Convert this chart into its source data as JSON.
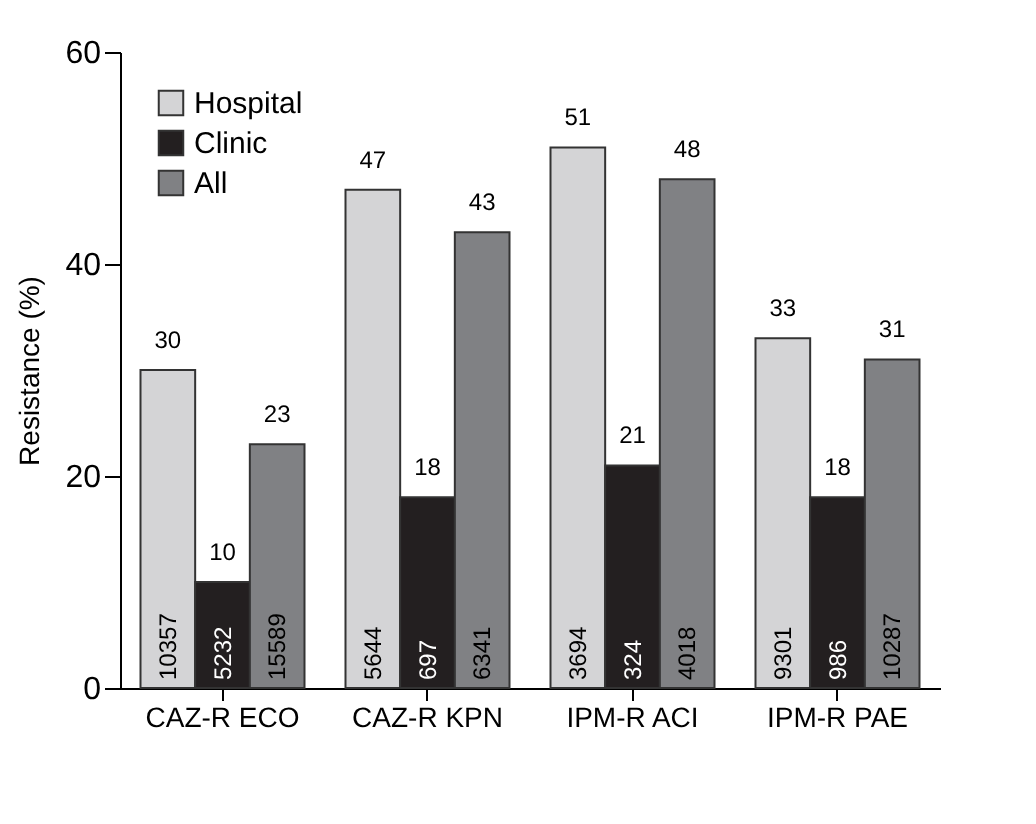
{
  "chart_data": {
    "type": "bar",
    "ylabel": "Resistance (%)",
    "categories": [
      "CAZ-R ECO",
      "CAZ-R KPN",
      "IPM-R ACI",
      "IPM-R PAE"
    ],
    "series": [
      {
        "name": "Hospital",
        "color": "#d4d4d6",
        "values": [
          30,
          47,
          51,
          33
        ]
      },
      {
        "name": "Clinic",
        "color": "#231f20",
        "values": [
          10,
          18,
          21,
          18
        ]
      },
      {
        "name": "All",
        "color": "#808184",
        "values": [
          23,
          43,
          48,
          31
        ]
      }
    ],
    "ylim": [
      0,
      60
    ],
    "yticks": [
      0,
      20,
      40,
      60
    ],
    "grid": false,
    "legend": "top left",
    "data_labels": true,
    "annotations": [
      {
        "text": "10357",
        "x": "CAZ-R ECO",
        "y": 0
      },
      {
        "text": "5232",
        "x": "CAZ-R ECO",
        "y": 0
      },
      {
        "text": "15589",
        "x": "CAZ-R ECO",
        "y": 0
      },
      {
        "text": "5644",
        "x": "CAZ-R KPN",
        "y": 0
      },
      {
        "text": "697",
        "x": "CAZ-R KPN",
        "y": 0
      },
      {
        "text": "6341",
        "x": "CAZ-R KPN",
        "y": 0
      },
      {
        "text": "3694",
        "x": "IPM-R ACI",
        "y": 0
      },
      {
        "text": "324",
        "x": "IPM-R ACI",
        "y": 0
      },
      {
        "text": "4018",
        "x": "IPM-R ACI",
        "y": 0
      },
      {
        "text": "9301",
        "x": "IPM-R PAE",
        "y": 0
      },
      {
        "text": "986",
        "x": "IPM-R PAE",
        "y": 0
      },
      {
        "text": "10287",
        "x": "IPM-R PAE",
        "y": 0
      }
    ]
  }
}
